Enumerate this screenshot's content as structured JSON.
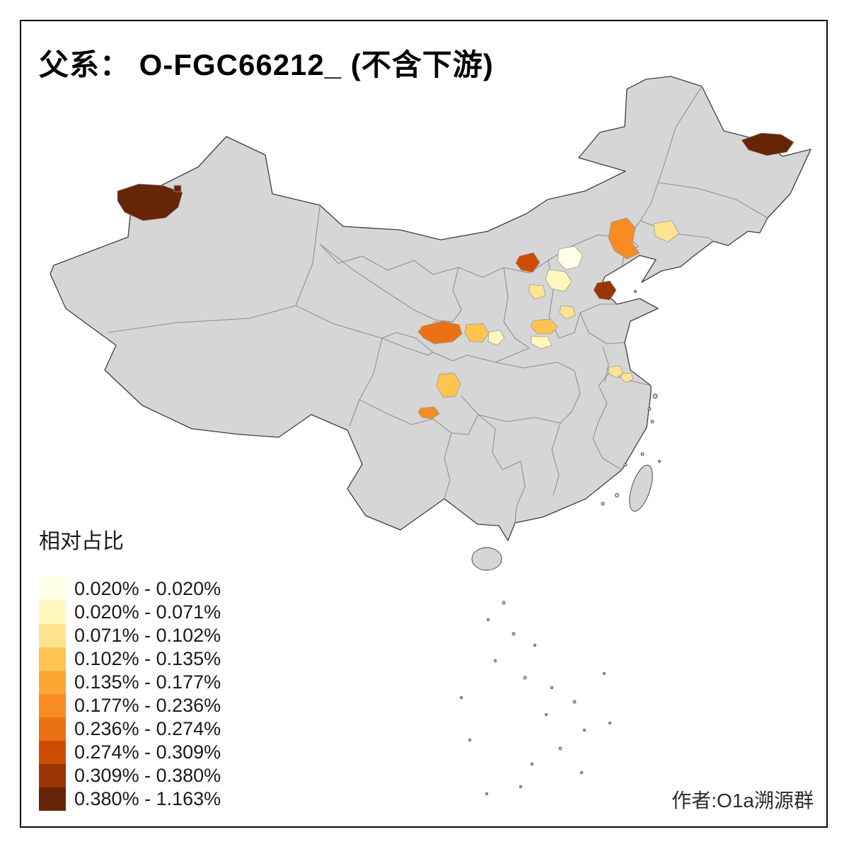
{
  "title": "父系： O-FGC66212_ (不含下游)",
  "legend": {
    "title": "相对占比",
    "bins": [
      {
        "label": "0.020% - 0.020%",
        "color": "#FFFFE5"
      },
      {
        "label": "0.020% - 0.071%",
        "color": "#FFF7BC"
      },
      {
        "label": "0.071% - 0.102%",
        "color": "#FEE391"
      },
      {
        "label": "0.102% - 0.135%",
        "color": "#FEC44F"
      },
      {
        "label": "0.135% - 0.177%",
        "color": "#FEA632"
      },
      {
        "label": "0.177% - 0.236%",
        "color": "#F88B22"
      },
      {
        "label": "0.236% - 0.274%",
        "color": "#EC7014"
      },
      {
        "label": "0.274% - 0.309%",
        "color": "#CC4C02"
      },
      {
        "label": "0.309% - 0.380%",
        "color": "#993404"
      },
      {
        "label": "0.380% - 1.163%",
        "color": "#662506"
      }
    ]
  },
  "credit": "作者:O1a溯源群",
  "map": {
    "land_fill": "#D6D6D6",
    "province_border_color": "#8F8F8F",
    "outline_color": "#3F3F3F",
    "highlights": [
      {
        "id": "region-0",
        "bin": 9
      },
      {
        "id": "region-1",
        "bin": 9
      },
      {
        "id": "region-2",
        "bin": 9
      },
      {
        "id": "region-3",
        "bin": 5
      },
      {
        "id": "region-4",
        "bin": 2
      },
      {
        "id": "region-5",
        "bin": 7
      },
      {
        "id": "region-6",
        "bin": 0
      },
      {
        "id": "region-7",
        "bin": 1
      },
      {
        "id": "region-8",
        "bin": 2
      },
      {
        "id": "region-9",
        "bin": 8
      },
      {
        "id": "region-10",
        "bin": 2
      },
      {
        "id": "region-11",
        "bin": 3
      },
      {
        "id": "region-12",
        "bin": 1
      },
      {
        "id": "region-13",
        "bin": 6
      },
      {
        "id": "region-14",
        "bin": 3
      },
      {
        "id": "region-15",
        "bin": 1
      },
      {
        "id": "region-16",
        "bin": 3
      },
      {
        "id": "region-17",
        "bin": 5
      },
      {
        "id": "region-18",
        "bin": 2
      },
      {
        "id": "region-19",
        "bin": 2
      }
    ]
  }
}
